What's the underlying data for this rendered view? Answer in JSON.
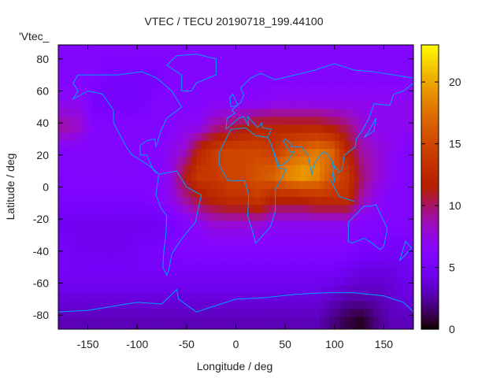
{
  "chart_data": {
    "type": "heatmap",
    "title": "VTEC / TECU 20190718_199.44100",
    "xlabel": "Longitude / deg",
    "ylabel": "Latitude / deg",
    "legend_key": "'Vtec_",
    "legend_placement": "top-left",
    "xlim": [
      -180,
      180
    ],
    "ylim": [
      -88.75,
      88.75
    ],
    "xticks": [
      -150,
      -100,
      -50,
      0,
      50,
      100,
      150
    ],
    "yticks": [
      -80,
      -60,
      -40,
      -20,
      0,
      20,
      40,
      60,
      80
    ],
    "colorbar": {
      "range": [
        0,
        23
      ],
      "ticks": [
        0,
        5,
        10,
        15,
        20
      ],
      "palette": "rgbformulae 7,5,15 (black-blue-violet-red-yellow)"
    },
    "coastline_color": "#00a0ff",
    "grid": false,
    "lon_centers": [
      -172.5,
      -157.5,
      -142.5,
      -127.5,
      -112.5,
      -97.5,
      -82.5,
      -67.5,
      -52.5,
      -37.5,
      -22.5,
      -7.5,
      7.5,
      22.5,
      37.5,
      52.5,
      67.5,
      82.5,
      97.5,
      112.5,
      127.5,
      142.5,
      157.5,
      172.5
    ],
    "lat_centers": [
      82.5,
      67.5,
      52.5,
      37.5,
      22.5,
      7.5,
      -7.5,
      -22.5,
      -37.5,
      -52.5,
      -67.5,
      -82.5
    ],
    "values": [
      [
        6,
        6,
        6,
        6,
        6,
        6,
        6,
        6,
        6,
        6,
        6,
        6,
        6,
        6,
        6,
        6,
        6,
        6,
        6,
        6,
        6,
        6,
        6,
        6
      ],
      [
        6,
        6,
        6,
        5,
        5,
        5,
        5,
        6,
        6,
        6,
        6,
        6,
        6,
        6,
        6,
        6,
        6,
        6,
        6,
        6,
        6,
        6,
        6,
        6
      ],
      [
        7,
        7,
        5,
        5,
        5,
        5,
        6,
        6,
        6,
        6,
        6.5,
        6.5,
        6.5,
        6.5,
        7,
        7,
        7,
        7,
        7,
        7,
        7,
        7,
        7,
        7
      ],
      [
        9,
        8,
        6,
        6,
        6,
        6,
        6,
        6,
        7,
        7,
        9,
        10,
        11,
        12,
        12,
        12,
        12,
        12,
        11,
        10,
        8,
        7,
        7,
        7
      ],
      [
        6,
        6,
        6,
        6,
        6,
        6,
        6,
        7,
        8,
        12,
        14,
        15,
        15,
        15,
        14,
        16,
        17,
        18,
        17,
        12,
        9,
        8,
        7,
        6
      ],
      [
        6,
        6,
        6,
        6,
        6,
        6,
        6,
        7,
        11,
        14,
        14,
        15,
        15,
        16,
        17,
        19,
        20,
        19,
        16,
        14,
        10,
        8,
        7,
        6
      ],
      [
        5.5,
        5.5,
        5.5,
        5.5,
        5.5,
        5.5,
        6,
        7,
        9,
        11,
        12,
        13,
        13,
        14,
        12,
        12,
        12,
        13,
        13,
        13,
        9,
        7,
        6,
        6
      ],
      [
        4.5,
        4.5,
        4.5,
        4.5,
        4.5,
        4.5,
        4.5,
        5,
        6,
        7,
        8,
        8,
        8,
        8,
        7,
        7,
        7,
        7,
        7,
        7,
        6,
        6,
        6,
        6
      ],
      [
        5,
        4.5,
        4.5,
        4.5,
        4.5,
        5,
        5,
        5.5,
        6,
        6,
        6,
        6,
        6,
        6,
        6,
        6,
        6,
        6,
        6,
        6,
        5.5,
        5.5,
        5,
        5
      ],
      [
        5,
        5,
        5,
        5,
        5,
        5,
        5,
        5,
        5,
        5,
        5,
        5,
        5,
        5,
        5,
        5,
        5,
        5,
        5,
        4.5,
        4,
        4,
        4,
        4.5
      ],
      [
        4,
        4,
        4,
        4,
        4,
        4,
        4,
        4,
        4,
        4,
        4,
        4,
        4,
        4,
        4,
        4,
        4,
        4,
        3.5,
        3,
        3,
        3,
        3.5,
        4
      ],
      [
        3,
        3,
        3,
        3,
        3,
        3,
        3,
        3,
        3,
        3,
        3,
        3,
        3,
        3,
        3,
        3,
        3,
        3,
        2,
        1,
        0.5,
        2,
        3,
        3
      ]
    ]
  }
}
